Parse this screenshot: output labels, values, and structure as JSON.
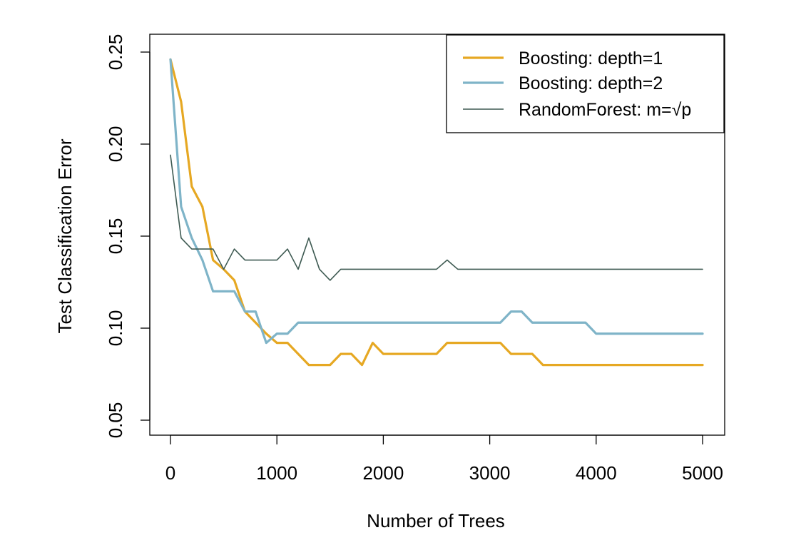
{
  "chart_data": {
    "type": "line",
    "title": "",
    "xlabel": "Number of Trees",
    "ylabel": "Test Classification Error",
    "xlim": [
      -200,
      5200
    ],
    "ylim": [
      0.042,
      0.25
    ],
    "x_ticks": [
      0,
      1000,
      2000,
      3000,
      4000,
      5000
    ],
    "x_tick_labels": [
      "0",
      "1000",
      "2000",
      "3000",
      "4000",
      "5000"
    ],
    "y_ticks": [
      0.05,
      0.1,
      0.15,
      0.2,
      0.25
    ],
    "y_tick_labels": [
      "0.05",
      "0.10",
      "0.15",
      "0.20",
      "0.25"
    ],
    "grid": false,
    "legend_position": "top-right",
    "series": [
      {
        "name": "Boosting: depth=1",
        "color": "#E6A823",
        "line_width": "thick",
        "points": [
          [
            0,
            0.246
          ],
          [
            100,
            0.223
          ],
          [
            200,
            0.177
          ],
          [
            300,
            0.166
          ],
          [
            400,
            0.137
          ],
          [
            500,
            0.132
          ],
          [
            600,
            0.126
          ],
          [
            700,
            0.109
          ],
          [
            800,
            0.103
          ],
          [
            900,
            0.097
          ],
          [
            1000,
            0.092
          ],
          [
            1100,
            0.092
          ],
          [
            1200,
            0.086
          ],
          [
            1300,
            0.08
          ],
          [
            1400,
            0.08
          ],
          [
            1500,
            0.08
          ],
          [
            1600,
            0.086
          ],
          [
            1700,
            0.086
          ],
          [
            1800,
            0.08
          ],
          [
            1900,
            0.092
          ],
          [
            2000,
            0.086
          ],
          [
            2500,
            0.086
          ],
          [
            2600,
            0.092
          ],
          [
            3100,
            0.092
          ],
          [
            3200,
            0.086
          ],
          [
            3400,
            0.086
          ],
          [
            3500,
            0.08
          ],
          [
            5000,
            0.08
          ]
        ]
      },
      {
        "name": "Boosting: depth=2",
        "color": "#7FB4C8",
        "line_width": "thick",
        "points": [
          [
            0,
            0.246
          ],
          [
            100,
            0.166
          ],
          [
            200,
            0.149
          ],
          [
            300,
            0.137
          ],
          [
            400,
            0.12
          ],
          [
            500,
            0.12
          ],
          [
            600,
            0.12
          ],
          [
            700,
            0.109
          ],
          [
            800,
            0.109
          ],
          [
            900,
            0.092
          ],
          [
            1000,
            0.097
          ],
          [
            1100,
            0.097
          ],
          [
            1200,
            0.103
          ],
          [
            3100,
            0.103
          ],
          [
            3200,
            0.109
          ],
          [
            3300,
            0.109
          ],
          [
            3400,
            0.103
          ],
          [
            3900,
            0.103
          ],
          [
            4000,
            0.097
          ],
          [
            5000,
            0.097
          ]
        ]
      },
      {
        "name": "RandomForest: m=√p",
        "color": "#3E5A52",
        "line_width": "thin",
        "points": [
          [
            0,
            0.194
          ],
          [
            100,
            0.149
          ],
          [
            200,
            0.143
          ],
          [
            300,
            0.143
          ],
          [
            400,
            0.143
          ],
          [
            500,
            0.132
          ],
          [
            600,
            0.143
          ],
          [
            700,
            0.137
          ],
          [
            800,
            0.137
          ],
          [
            900,
            0.137
          ],
          [
            1000,
            0.137
          ],
          [
            1100,
            0.143
          ],
          [
            1200,
            0.132
          ],
          [
            1300,
            0.149
          ],
          [
            1400,
            0.132
          ],
          [
            1500,
            0.126
          ],
          [
            1600,
            0.132
          ],
          [
            2500,
            0.132
          ],
          [
            2600,
            0.137
          ],
          [
            2700,
            0.132
          ],
          [
            5000,
            0.132
          ]
        ]
      }
    ]
  }
}
